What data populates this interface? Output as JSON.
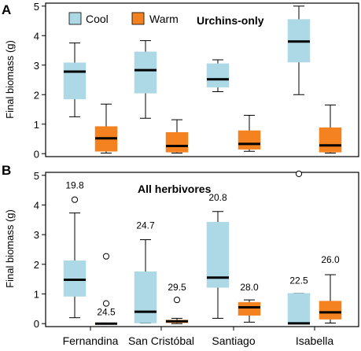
{
  "chart_data": [
    {
      "type": "box",
      "panel_label": "A",
      "title": "Urchins-only",
      "ylabel": "Final biomass (g)",
      "ylim": [
        -0.1,
        5.1
      ],
      "yticks": [
        0,
        1,
        2,
        3,
        4,
        5
      ],
      "categories": [
        "Fernandina",
        "San Cristóbal",
        "Santiago",
        "Isabella"
      ],
      "legend": {
        "placement": "top-left",
        "entries": [
          "Cool",
          "Warm"
        ]
      },
      "series": [
        {
          "name": "Cool",
          "color": "#add8e6",
          "boxes": [
            {
              "min": 1.25,
              "q1": 1.85,
              "median": 2.78,
              "q3": 3.08,
              "max": 3.75,
              "outliers": []
            },
            {
              "min": 1.2,
              "q1": 2.05,
              "median": 2.83,
              "q3": 3.45,
              "max": 3.83,
              "outliers": []
            },
            {
              "min": 2.1,
              "q1": 2.25,
              "median": 2.52,
              "q3": 3.05,
              "max": 3.18,
              "outliers": []
            },
            {
              "min": 2.0,
              "q1": 3.1,
              "median": 3.8,
              "q3": 4.55,
              "max": 5.0,
              "outliers": []
            }
          ]
        },
        {
          "name": "Warm",
          "color": "#f58220",
          "boxes": [
            {
              "min": 0.02,
              "q1": 0.08,
              "median": 0.52,
              "q3": 0.92,
              "max": 1.68,
              "outliers": []
            },
            {
              "min": 0.02,
              "q1": 0.05,
              "median": 0.26,
              "q3": 0.72,
              "max": 1.15,
              "outliers": []
            },
            {
              "min": 0.08,
              "q1": 0.15,
              "median": 0.33,
              "q3": 0.78,
              "max": 1.3,
              "outliers": []
            },
            {
              "min": 0.02,
              "q1": 0.05,
              "median": 0.28,
              "q3": 0.88,
              "max": 1.65,
              "outliers": []
            }
          ]
        }
      ],
      "annotations": []
    },
    {
      "type": "box",
      "panel_label": "B",
      "title": "All herbivores",
      "ylabel": "Final biomass (g)",
      "ylim": [
        -0.1,
        5.1
      ],
      "yticks": [
        0,
        1,
        2,
        3,
        4,
        5
      ],
      "categories": [
        "Fernandina",
        "San Cristóbal",
        "Santiago",
        "Isabella"
      ],
      "series": [
        {
          "name": "Cool",
          "color": "#add8e6",
          "boxes": [
            {
              "min": 0.2,
              "q1": 0.92,
              "median": 1.48,
              "q3": 2.12,
              "max": 3.73,
              "outliers": [
                4.18
              ]
            },
            {
              "min": 0.02,
              "q1": 0.02,
              "median": 0.4,
              "q3": 1.75,
              "max": 2.83,
              "outliers": []
            },
            {
              "min": 0.18,
              "q1": 1.22,
              "median": 1.55,
              "q3": 3.42,
              "max": 3.78,
              "outliers": []
            },
            {
              "min": 0.0,
              "q1": 0.0,
              "median": 0.01,
              "q3": 1.02,
              "max": 1.02,
              "outliers": [
                5.05
              ]
            }
          ]
        },
        {
          "name": "Warm",
          "color": "#f58220",
          "boxes": [
            {
              "min": 0.0,
              "q1": 0.0,
              "median": 0.0,
              "q3": 0.02,
              "max": 0.02,
              "outliers": [
                0.68,
                2.27
              ]
            },
            {
              "min": 0.0,
              "q1": 0.03,
              "median": 0.08,
              "q3": 0.12,
              "max": 0.18,
              "outliers": [
                0.8
              ]
            },
            {
              "min": 0.05,
              "q1": 0.28,
              "median": 0.55,
              "q3": 0.72,
              "max": 0.8,
              "outliers": []
            },
            {
              "min": 0.02,
              "q1": 0.15,
              "median": 0.38,
              "q3": 0.76,
              "max": 1.65,
              "outliers": []
            }
          ]
        }
      ],
      "annotations": [
        {
          "text": "19.8",
          "category": "Fernandina",
          "series": "Cool",
          "y": 4.55
        },
        {
          "text": "24.5",
          "category": "Fernandina",
          "series": "Warm",
          "y": 0.28
        },
        {
          "text": "24.7",
          "category": "San Cristóbal",
          "series": "Cool",
          "y": 3.2
        },
        {
          "text": "29.5",
          "category": "San Cristóbal",
          "series": "Warm",
          "y": 1.12
        },
        {
          "text": "20.8",
          "category": "Santiago",
          "series": "Cool",
          "y": 4.15
        },
        {
          "text": "28.0",
          "category": "Santiago",
          "series": "Warm",
          "y": 1.12
        },
        {
          "text": "22.5",
          "category": "Isabella",
          "series": "Cool",
          "y": 1.35
        },
        {
          "text": "26.0",
          "category": "Isabella",
          "series": "Warm",
          "y": 2.05
        }
      ]
    }
  ]
}
